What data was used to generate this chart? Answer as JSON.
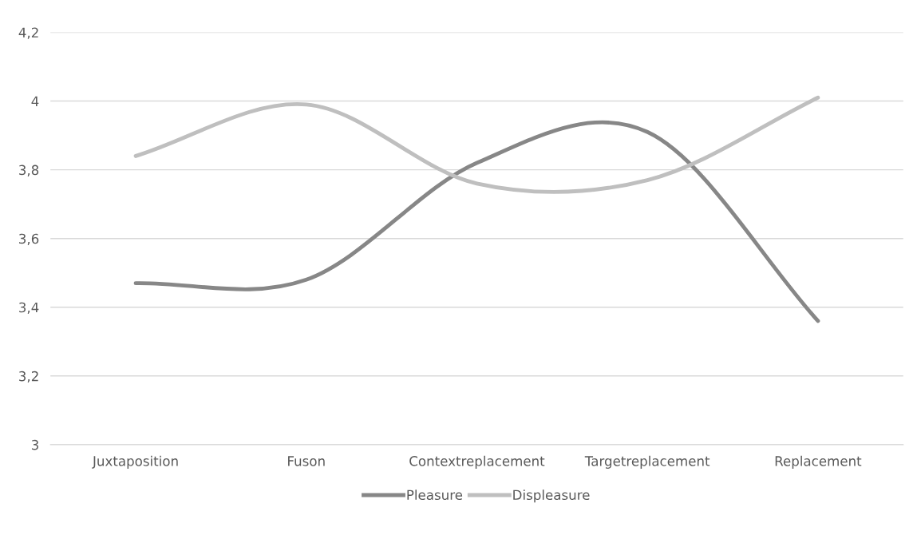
{
  "chart_data": {
    "type": "line",
    "categories": [
      "Juxtaposition",
      "Fuson",
      "Contextreplacement",
      "Targetreplacement",
      "Replacement"
    ],
    "series": [
      {
        "name": "Pleasure",
        "color": "#878787",
        "values": [
          3.47,
          3.48,
          3.82,
          3.91,
          3.36
        ]
      },
      {
        "name": "Displeasure",
        "color": "#bfbfbf",
        "values": [
          3.84,
          3.99,
          3.76,
          3.77,
          4.01
        ]
      }
    ],
    "ylim": [
      3,
      4.2
    ],
    "yticks": [
      3,
      {
        "value": 3.2,
        "label": "3,2"
      },
      {
        "value": 3.4,
        "label": "3,4"
      },
      {
        "value": 3.6,
        "label": "3,6"
      },
      {
        "value": 3.8,
        "label": "3,8"
      },
      4,
      {
        "value": 4.2,
        "label": "4,2"
      }
    ],
    "grid": "y",
    "legend": "bottom",
    "marker": "none",
    "line_style": "solid"
  }
}
